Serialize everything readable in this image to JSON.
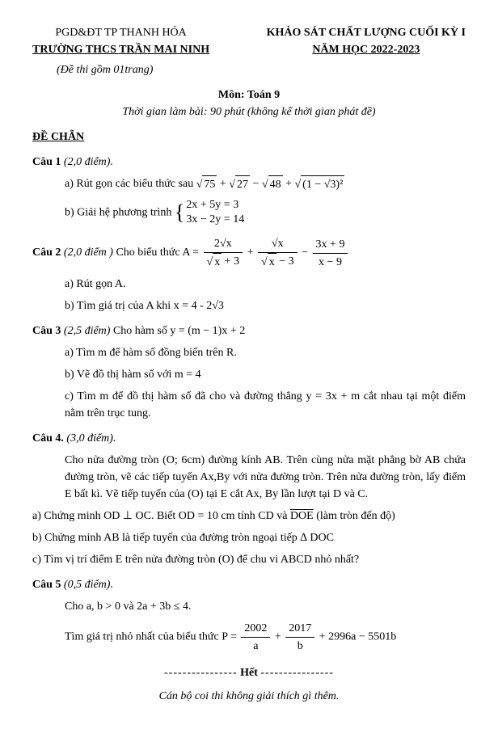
{
  "header": {
    "dept": "PGD&ĐT TP THANH HÓA",
    "school": "TRƯỜNG THCS TRẦN MAI NINH",
    "pages_note": "(Đề thi gồm 01trang)",
    "exam_title": "KHẢO SÁT CHẤT LƯỢNG CUỐI KỲ I",
    "year": "NĂM HỌC 2022-2023",
    "subject": "Môn: Toán 9",
    "time": "Thời gian làm bài: 90 phút (không kể thời gian phát đề)"
  },
  "section": "ĐỀ CHẴN",
  "q1": {
    "title_bold": "Câu 1 ",
    "title_ital": "(2,0 điểm).",
    "a_text": "a) Rút gọn các biểu thức sau ",
    "a_m1": "75",
    "a_m2": "27",
    "a_m3": "48",
    "a_m4": "(1 − √3)²",
    "b_text": "b) Giải hệ phương trình ",
    "b_eq1": "2x + 5y = 3",
    "b_eq2": "3x − 2y = 14"
  },
  "q2": {
    "title_bold": "Câu 2 ",
    "title_ital": "(2,0 điểm )",
    "lead": " Cho biểu thức  A = ",
    "f1_num": "2√x",
    "f1_den_a": "x",
    "f1_den_b": " + 3",
    "f2_num": "√x",
    "f2_den_a": "x",
    "f2_den_b": " − 3",
    "f3_num": "3x + 9",
    "f3_den": "x − 9",
    "a": "a) Rút gọn A.",
    "b": "b) Tìm giá trị của A khi x = 4 - 2√3"
  },
  "q3": {
    "title_bold": "Câu 3 ",
    "title_ital": "(2,5 điểm)",
    "lead": " Cho hàm số y = (m − 1)x + 2",
    "a": "a) Tìm m để hàm số đồng biến trên R.",
    "b": "b) Vẽ đồ thị hàm số với m = 4",
    "c": "c) Tìm m để đồ thị hàm số đã cho và đường thẳng y = 3x + m cắt nhau tại một điểm nằm trên trục tung."
  },
  "q4": {
    "title_bold": "Câu 4. ",
    "title_ital": "(3,0 điểm).",
    "p1": "Cho nửa đường  tròn (O; 6cm) đường kính AB. Trên cùng nửa mặt phẳng bờ AB chứa đường tròn, vẽ các tiếp tuyến Ax,By với nửa đường tròn. Trên nửa đường tròn, lấy điểm E bất kì. Vẽ tiếp tuyến của (O) tại E cắt Ax, By lần lượt tại D và C.",
    "a_pre": "a) Chứng minh OD ⊥ OC. Biết OD = 10 cm tính CD và ",
    "a_arc": "DOE",
    "a_post": " (làm tròn đến độ)",
    "b": "b) Chứng minh AB là tiếp tuyến của đường tròn ngoại tiếp ∆ DOC",
    "c": "c) Tìm vị trí điểm E trên nửa đường tròn (O) để chu vi ABCD nhỏ nhất?"
  },
  "q5": {
    "title_bold": "Câu 5 ",
    "title_ital": "(0,5 điểm).",
    "cond": "Cho a, b > 0 và 2a + 3b ≤ 4.",
    "lead": "Tìm giá trị nhỏ nhất của biểu thức P = ",
    "f1_num": "2002",
    "f1_den": "a",
    "f2_num": "2017",
    "f2_den": "b",
    "tail": " + 2996a − 5501b"
  },
  "end": {
    "dash": "----------------",
    "word": " Hết ",
    "note": "Cán bộ coi thi không giải thích gì thêm."
  }
}
